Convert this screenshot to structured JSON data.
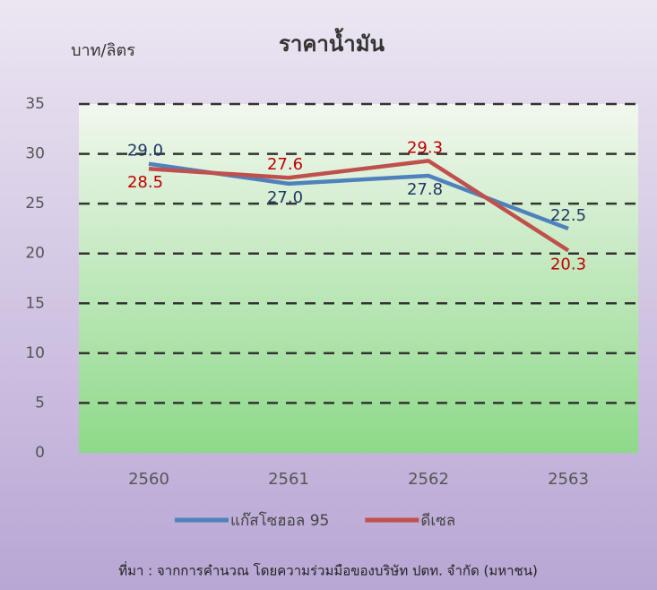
{
  "chart_data": {
    "type": "line",
    "title": "ราคาน้ำมัน",
    "y_label": "บาท/ลิตร",
    "categories": [
      "2560",
      "2561",
      "2562",
      "2563"
    ],
    "series": [
      {
        "name": "แก๊สโซฮอล 95",
        "color": "#4f81bd",
        "values": [
          29.0,
          27.0,
          27.8,
          22.5
        ],
        "value_labels": [
          "29.0",
          "27.0",
          "27.8",
          "22.5"
        ],
        "label_color": "#1f3864"
      },
      {
        "name": "ดีเซล",
        "color": "#c0504d",
        "values": [
          28.5,
          27.6,
          29.3,
          20.3
        ],
        "value_labels": [
          "28.5",
          "27.6",
          "29.3",
          "20.3"
        ],
        "label_color": "#c00000"
      }
    ],
    "ylim": [
      0,
      35
    ],
    "yticks": [
      0,
      5,
      10,
      15,
      20,
      25,
      30,
      35
    ],
    "grid": true,
    "legend": "bottom",
    "source": "ที่มา : จากการคำนวณ โดยความร่วมมือของบริษัท ปตท. จำกัด (มหาชน)"
  }
}
